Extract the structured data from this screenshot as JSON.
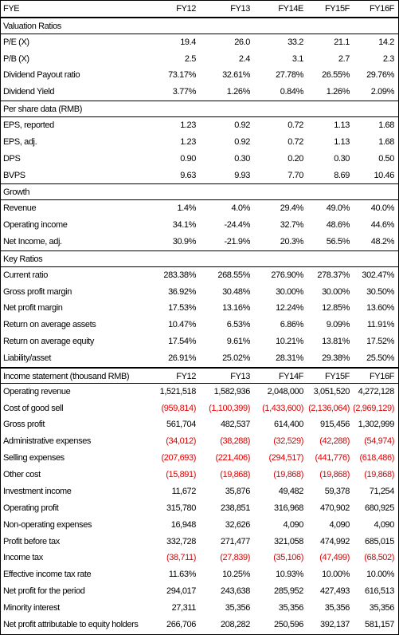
{
  "header": [
    "FYE",
    "FY12",
    "FY13",
    "FY14E",
    "FY15F",
    "FY16F"
  ],
  "sections": [
    {
      "title": "Valuation Ratios",
      "rows": [
        {
          "label": "P/E (X)",
          "values": [
            "19.4",
            "26.0",
            "33.2",
            "21.1",
            "14.2"
          ]
        },
        {
          "label": "P/B (X)",
          "values": [
            "2.5",
            "2.4",
            "3.1",
            "2.7",
            "2.3"
          ]
        },
        {
          "label": "Dividend Payout ratio",
          "values": [
            "73.17%",
            "32.61%",
            "27.78%",
            "26.55%",
            "29.76%"
          ]
        },
        {
          "label": "Dividend Yield",
          "values": [
            "3.77%",
            "1.26%",
            "0.84%",
            "1.26%",
            "2.09%"
          ]
        }
      ]
    },
    {
      "title": "Per share data (RMB)",
      "rows": [
        {
          "label": "EPS, reported",
          "values": [
            "1.23",
            "0.92",
            "0.72",
            "1.13",
            "1.68"
          ]
        },
        {
          "label": "EPS, adj.",
          "values": [
            "1.23",
            "0.92",
            "0.72",
            "1.13",
            "1.68"
          ]
        },
        {
          "label": "DPS",
          "values": [
            "0.90",
            "0.30",
            "0.20",
            "0.30",
            "0.50"
          ]
        },
        {
          "label": "BVPS",
          "values": [
            "9.63",
            "9.93",
            "7.70",
            "8.69",
            "10.46"
          ]
        }
      ]
    },
    {
      "title": "Growth",
      "rows": [
        {
          "label": "Revenue",
          "values": [
            "1.4%",
            "4.0%",
            "29.4%",
            "49.0%",
            "40.0%"
          ]
        },
        {
          "label": "Operating income",
          "values": [
            "34.1%",
            "-24.4%",
            "32.7%",
            "48.6%",
            "44.6%"
          ]
        },
        {
          "label": "Net Income, adj.",
          "values": [
            "30.9%",
            "-21.9%",
            "20.3%",
            "56.5%",
            "48.2%"
          ]
        }
      ]
    },
    {
      "title": "Key Ratios",
      "rows": [
        {
          "label": "Current ratio",
          "values": [
            "283.38%",
            "268.55%",
            "276.90%",
            "278.37%",
            "302.47%"
          ]
        },
        {
          "label": "Gross profit margin",
          "values": [
            "36.92%",
            "30.48%",
            "30.00%",
            "30.00%",
            "30.50%"
          ]
        },
        {
          "label": "Net profit margin",
          "values": [
            "17.53%",
            "13.16%",
            "12.24%",
            "12.85%",
            "13.60%"
          ]
        },
        {
          "label": "Return on average assets",
          "values": [
            "10.47%",
            "6.53%",
            "6.86%",
            "9.09%",
            "11.91%"
          ]
        },
        {
          "label": "Return on average equity",
          "values": [
            "17.54%",
            "9.61%",
            "10.21%",
            "13.81%",
            "17.52%"
          ]
        },
        {
          "label": "Liability/asset",
          "values": [
            "26.91%",
            "25.02%",
            "28.31%",
            "29.38%",
            "25.50%"
          ]
        }
      ]
    }
  ],
  "income_statement": {
    "header": [
      "Income statement (thousand RMB)",
      "FY12",
      "FY13",
      "FY14F",
      "FY15F",
      "FY16F"
    ],
    "rows": [
      {
        "label": "Operating revenue",
        "values": [
          "1,521,518",
          "1,582,936",
          "2,048,000",
          "3,051,520",
          "4,272,128"
        ]
      },
      {
        "label": "Cost of good sell",
        "values": [
          "(959,814)",
          "(1,100,399)",
          "(1,433,600)",
          "(2,136,064)",
          "(2,969,129)"
        ]
      },
      {
        "label": "Gross profit",
        "values": [
          "561,704",
          "482,537",
          "614,400",
          "915,456",
          "1,302,999"
        ]
      },
      {
        "label": "Administrative expenses",
        "values": [
          "(34,012)",
          "(38,288)",
          "(32,529)",
          "(42,288)",
          "(54,974)"
        ]
      },
      {
        "label": "Selling expenses",
        "values": [
          "(207,693)",
          "(221,406)",
          "(294,517)",
          "(441,776)",
          "(618,486)"
        ]
      },
      {
        "label": "Other cost",
        "values": [
          "(15,891)",
          "(19,868)",
          "(19,868)",
          "(19,868)",
          "(19,868)"
        ]
      },
      {
        "label": "Investment income",
        "values": [
          "11,672",
          "35,876",
          "49,482",
          "59,378",
          "71,254"
        ]
      },
      {
        "label": "Operating profit",
        "values": [
          "315,780",
          "238,851",
          "316,968",
          "470,902",
          "680,925"
        ]
      },
      {
        "label": "Non-operating expenses",
        "values": [
          "16,948",
          "32,626",
          "4,090",
          "4,090",
          "4,090"
        ]
      },
      {
        "label": "Profit before tax",
        "values": [
          "332,728",
          "271,477",
          "321,058",
          "474,992",
          "685,015"
        ]
      },
      {
        "label": "Income tax",
        "values": [
          "(38,711)",
          "(27,839)",
          "(35,106)",
          "(47,499)",
          "(68,502)"
        ]
      },
      {
        "label": "Effective income tax rate",
        "values": [
          "11.63%",
          "10.25%",
          "10.93%",
          "10.00%",
          "10.00%"
        ]
      },
      {
        "label": "Net profit for the period",
        "values": [
          "294,017",
          "243,638",
          "285,952",
          "427,493",
          "616,513"
        ]
      },
      {
        "label": "Minority interest",
        "values": [
          "27,311",
          "35,356",
          "35,356",
          "35,356",
          "35,356"
        ]
      },
      {
        "label": "Net profit attributable to equity holders",
        "values": [
          "266,706",
          "208,282",
          "250,596",
          "392,137",
          "581,157"
        ]
      }
    ]
  }
}
